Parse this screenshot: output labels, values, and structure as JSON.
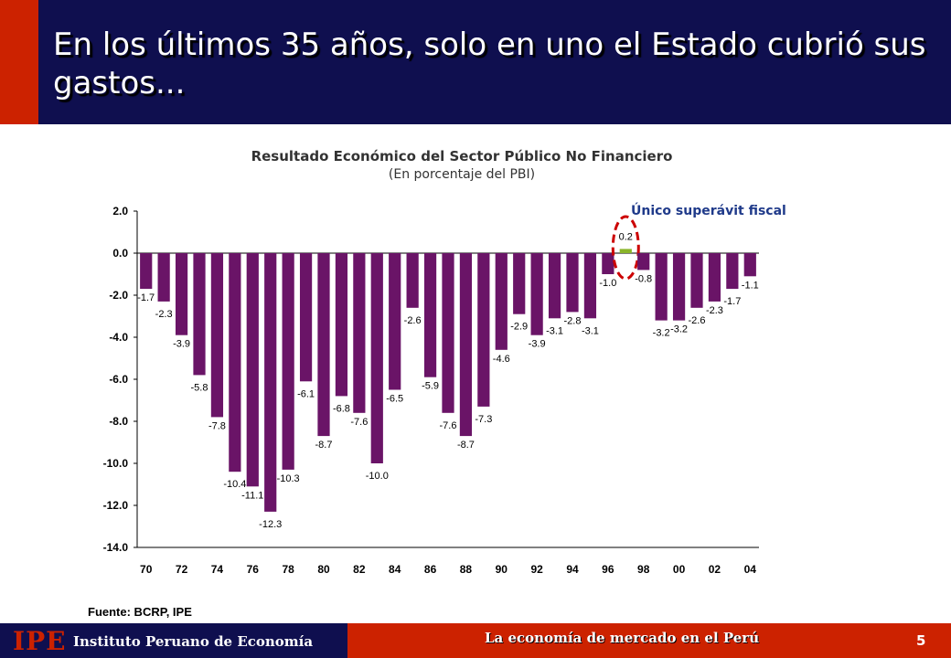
{
  "header": {
    "title": "En los últimos 35 años, solo en uno el Estado cubrió sus gastos..."
  },
  "chart_data": {
    "type": "bar",
    "title": "Resultado Económico del Sector Público No Financiero",
    "subtitle": "(En porcentaje del PBI)",
    "annotation": "Único superávit fiscal",
    "source": "Fuente: BCRP, IPE",
    "x": [
      1970,
      1971,
      1972,
      1973,
      1974,
      1975,
      1976,
      1977,
      1978,
      1979,
      1980,
      1981,
      1982,
      1983,
      1984,
      1985,
      1986,
      1987,
      1988,
      1989,
      1990,
      1991,
      1992,
      1993,
      1994,
      1995,
      1996,
      1997,
      1998,
      1999,
      2000,
      2001,
      2002,
      2003,
      2004
    ],
    "values": [
      -1.7,
      -2.3,
      -3.9,
      -5.8,
      -7.8,
      -10.4,
      -11.1,
      -12.3,
      -10.3,
      -6.1,
      -8.7,
      -6.8,
      -7.6,
      -10.0,
      -6.5,
      -2.6,
      -5.9,
      -7.6,
      -8.7,
      -7.3,
      -4.6,
      -2.9,
      -3.9,
      -3.1,
      -2.8,
      -3.1,
      -1.0,
      0.2,
      -0.8,
      -3.2,
      -3.2,
      -2.6,
      -2.3,
      -1.7,
      -1.1
    ],
    "x_ticks": [
      "70",
      "72",
      "74",
      "76",
      "78",
      "80",
      "82",
      "84",
      "86",
      "88",
      "90",
      "92",
      "94",
      "96",
      "98",
      "00",
      "02",
      "04"
    ],
    "y_ticks": [
      "2.0",
      "0.0",
      "-2.0",
      "-4.0",
      "-6.0",
      "-8.0",
      "-10.0",
      "-12.0",
      "-14.0"
    ],
    "ylim": [
      -14,
      2
    ],
    "grid": false,
    "colors": {
      "bar": "#6a1467",
      "surplus_bar": "#8ab52a",
      "highlight": "#cc0000"
    }
  },
  "footer": {
    "logo": "IPE",
    "org": "Instituto Peruano de Economía",
    "tagline": "La economía de mercado en el Perú",
    "page": "5"
  }
}
